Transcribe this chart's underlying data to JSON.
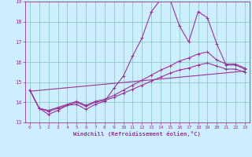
{
  "title": "",
  "xlabel": "Windchill (Refroidissement éolien,°C)",
  "ylabel": "",
  "background_color": "#cceeff",
  "grid_color": "#99cccc",
  "line_color": "#993399",
  "tick_color": "#993399",
  "xlim": [
    -0.5,
    23.5
  ],
  "ylim": [
    13,
    19
  ],
  "yticks": [
    13,
    14,
    15,
    16,
    17,
    18,
    19
  ],
  "xticks": [
    0,
    1,
    2,
    3,
    4,
    5,
    6,
    7,
    8,
    9,
    10,
    11,
    12,
    13,
    14,
    15,
    16,
    17,
    18,
    19,
    20,
    21,
    22,
    23
  ],
  "series": [
    {
      "x": [
        0,
        1,
        2,
        3,
        4,
        5,
        6,
        7,
        8,
        9,
        10,
        11,
        12,
        13,
        14,
        15,
        16,
        17,
        18,
        19,
        20,
        21,
        22,
        23
      ],
      "y": [
        14.6,
        13.7,
        13.4,
        13.6,
        13.85,
        13.9,
        13.65,
        13.9,
        14.05,
        14.7,
        15.3,
        16.3,
        17.2,
        18.5,
        19.1,
        19.1,
        17.8,
        17.0,
        18.5,
        18.2,
        16.9,
        15.85,
        15.85,
        15.65
      ],
      "has_markers": true
    },
    {
      "x": [
        0,
        1,
        2,
        3,
        4,
        5,
        6,
        7,
        8,
        9,
        10,
        11,
        12,
        13,
        14,
        15,
        16,
        17,
        18,
        19,
        20,
        21,
        22,
        23
      ],
      "y": [
        14.6,
        13.7,
        13.6,
        13.75,
        13.9,
        14.05,
        13.85,
        14.05,
        14.15,
        14.35,
        14.6,
        14.85,
        15.1,
        15.35,
        15.6,
        15.8,
        16.05,
        16.2,
        16.4,
        16.5,
        16.1,
        15.9,
        15.9,
        15.7
      ],
      "has_markers": true
    },
    {
      "x": [
        0,
        1,
        2,
        3,
        4,
        5,
        6,
        7,
        8,
        9,
        10,
        11,
        12,
        13,
        14,
        15,
        16,
        17,
        18,
        19,
        20,
        21,
        22,
        23
      ],
      "y": [
        14.6,
        13.7,
        13.55,
        13.7,
        13.85,
        14.0,
        13.8,
        14.0,
        14.1,
        14.25,
        14.45,
        14.65,
        14.85,
        15.05,
        15.25,
        15.45,
        15.6,
        15.7,
        15.85,
        15.95,
        15.8,
        15.65,
        15.65,
        15.5
      ],
      "has_markers": true
    },
    {
      "x": [
        0,
        23
      ],
      "y": [
        14.55,
        15.55
      ],
      "has_markers": false
    }
  ]
}
